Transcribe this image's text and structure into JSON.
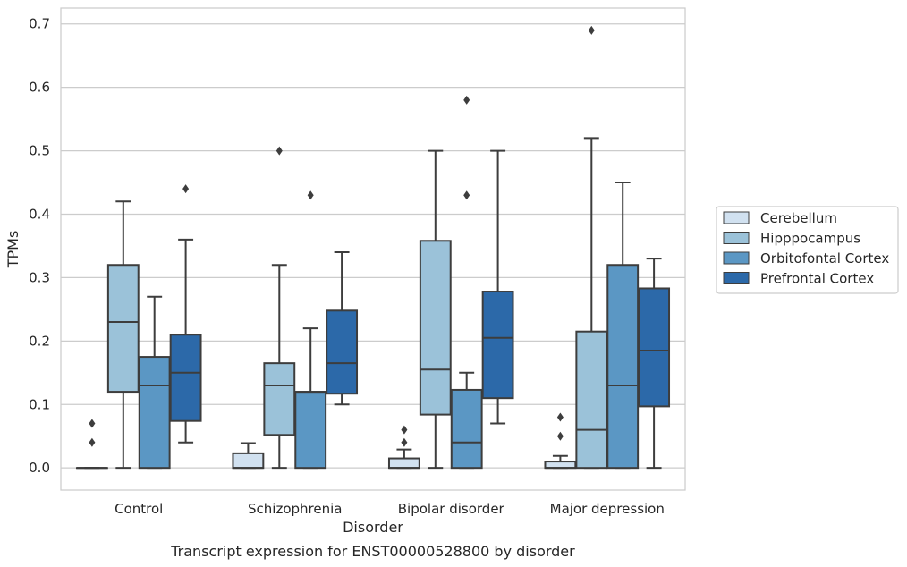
{
  "caption": "Transcript expression for ENST00000528800 by disorder",
  "chart_data": {
    "type": "boxplot",
    "xlabel": "Disorder",
    "ylabel": "TPMs",
    "ylim": [
      -0.035,
      0.725
    ],
    "yticks": [
      0.0,
      0.1,
      0.2,
      0.3,
      0.4,
      0.5,
      0.6,
      0.7
    ],
    "ytick_labels": [
      "0.0",
      "0.1",
      "0.2",
      "0.3",
      "0.4",
      "0.5",
      "0.6",
      "0.7"
    ],
    "grid": true,
    "legend_position": "right",
    "categories": [
      "Control",
      "Schizophrenia",
      "Bipolar disorder",
      "Major depression"
    ],
    "series": [
      {
        "name": "Cerebellum",
        "color": "#d1e1f0",
        "boxes": [
          {
            "q1": 0.0,
            "median": 0.0,
            "q3": 0.0,
            "whislo": 0.0,
            "whishi": 0.0,
            "fliers": [
              0.04,
              0.07
            ]
          },
          {
            "q1": 0.0,
            "median": 0.0,
            "q3": 0.023,
            "whislo": 0.0,
            "whishi": 0.039,
            "fliers": []
          },
          {
            "q1": 0.0,
            "median": 0.0,
            "q3": 0.015,
            "whislo": 0.0,
            "whishi": 0.029,
            "fliers": [
              0.04,
              0.06
            ]
          },
          {
            "q1": 0.0,
            "median": 0.0,
            "q3": 0.01,
            "whislo": 0.0,
            "whishi": 0.019,
            "fliers": [
              0.05,
              0.08
            ]
          }
        ]
      },
      {
        "name": "Hipppocampus",
        "color": "#9bc2d9",
        "boxes": [
          {
            "q1": 0.12,
            "median": 0.23,
            "q3": 0.32,
            "whislo": 0.0,
            "whishi": 0.42,
            "fliers": []
          },
          {
            "q1": 0.052,
            "median": 0.13,
            "q3": 0.165,
            "whislo": 0.0,
            "whishi": 0.32,
            "fliers": [
              0.5
            ]
          },
          {
            "q1": 0.084,
            "median": 0.155,
            "q3": 0.358,
            "whislo": 0.0,
            "whishi": 0.5,
            "fliers": []
          },
          {
            "q1": 0.0,
            "median": 0.06,
            "q3": 0.215,
            "whislo": 0.0,
            "whishi": 0.52,
            "fliers": [
              0.69
            ]
          }
        ]
      },
      {
        "name": "Orbitofontal Cortex",
        "color": "#5b97c4",
        "boxes": [
          {
            "q1": 0.0,
            "median": 0.13,
            "q3": 0.175,
            "whislo": 0.0,
            "whishi": 0.27,
            "fliers": []
          },
          {
            "q1": 0.0,
            "median": 0.12,
            "q3": 0.12,
            "whislo": 0.0,
            "whishi": 0.22,
            "fliers": [
              0.43
            ]
          },
          {
            "q1": 0.0,
            "median": 0.04,
            "q3": 0.123,
            "whislo": 0.0,
            "whishi": 0.15,
            "fliers": [
              0.43,
              0.58
            ]
          },
          {
            "q1": 0.0,
            "median": 0.13,
            "q3": 0.32,
            "whislo": 0.0,
            "whishi": 0.45,
            "fliers": []
          }
        ]
      },
      {
        "name": "Prefrontal Cortex",
        "color": "#2c69a9",
        "boxes": [
          {
            "q1": 0.074,
            "median": 0.15,
            "q3": 0.21,
            "whislo": 0.04,
            "whishi": 0.36,
            "fliers": [
              0.44
            ]
          },
          {
            "q1": 0.117,
            "median": 0.165,
            "q3": 0.248,
            "whislo": 0.1,
            "whishi": 0.34,
            "fliers": []
          },
          {
            "q1": 0.11,
            "median": 0.205,
            "q3": 0.278,
            "whislo": 0.07,
            "whishi": 0.5,
            "fliers": []
          },
          {
            "q1": 0.097,
            "median": 0.185,
            "q3": 0.283,
            "whislo": 0.0,
            "whishi": 0.33,
            "fliers": []
          }
        ]
      }
    ]
  }
}
